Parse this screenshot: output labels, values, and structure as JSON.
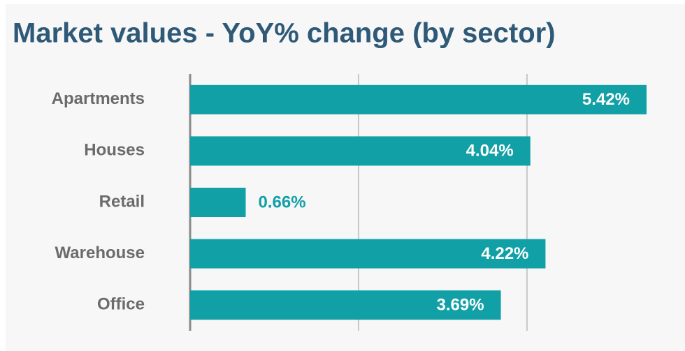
{
  "chart_data": {
    "type": "bar",
    "orientation": "horizontal",
    "title": "Market values - YoY% change (by sector)",
    "categories": [
      "Apartments",
      "Houses",
      "Retail",
      "Warehouse",
      "Office"
    ],
    "values": [
      5.42,
      4.04,
      0.66,
      4.22,
      3.69
    ],
    "value_labels": [
      "5.42%",
      "4.04%",
      "0.66%",
      "4.22%",
      "3.69%"
    ],
    "color": "#11a0a6",
    "xlim": [
      0,
      5.86
    ],
    "xticks": [
      0,
      2,
      4
    ],
    "grid": true
  }
}
